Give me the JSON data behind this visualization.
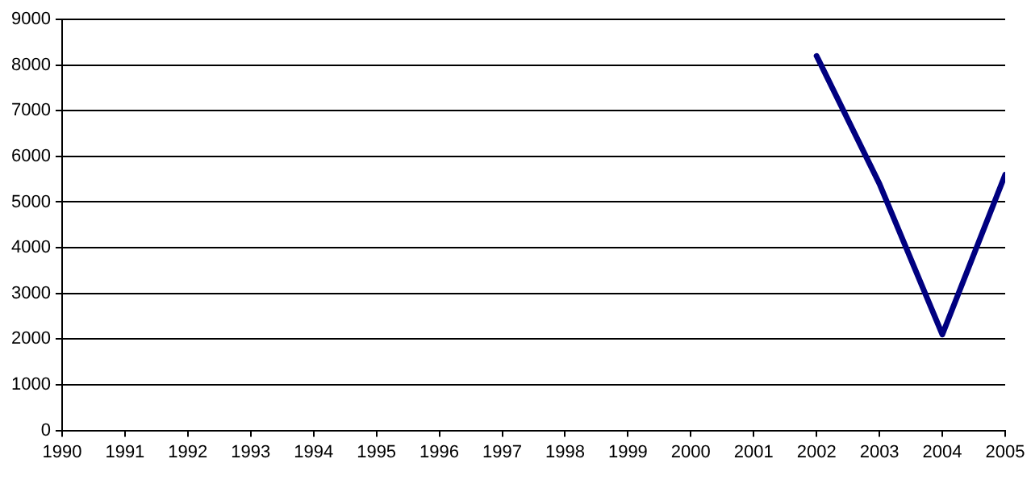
{
  "chart_data": {
    "type": "line",
    "x": [
      2002,
      2003,
      2004,
      2005
    ],
    "series": [
      {
        "color": "#000080",
        "values": [
          8200,
          5400,
          2100,
          5600
        ]
      }
    ],
    "xlim": [
      1990,
      2005
    ],
    "xticks": [
      1990,
      1991,
      1992,
      1993,
      1994,
      1995,
      1996,
      1997,
      1998,
      1999,
      2000,
      2001,
      2002,
      2003,
      2004,
      2005
    ],
    "ylim": [
      0,
      9000
    ],
    "yticks": [
      0,
      1000,
      2000,
      3000,
      4000,
      5000,
      6000,
      7000,
      8000,
      9000
    ],
    "grid": "y",
    "legend": false,
    "marker": "none",
    "line_style": "solid"
  }
}
